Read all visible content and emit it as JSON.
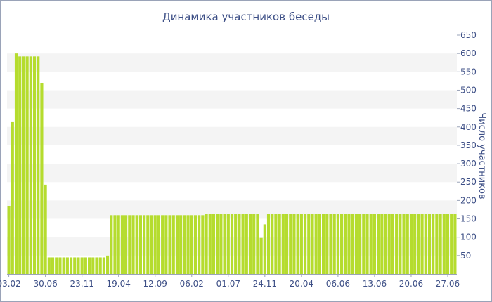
{
  "chart_data": {
    "type": "bar",
    "title": "Динамика участников беседы",
    "ylabel": "Число участников",
    "xlabel": "",
    "ylim": [
      0,
      650
    ],
    "y_ticks": [
      50,
      100,
      150,
      200,
      250,
      300,
      350,
      400,
      450,
      500,
      550,
      600,
      650
    ],
    "y_axis_side": "right",
    "x_tick_labels": [
      "03.02",
      "30.06",
      "23.11",
      "19.04",
      "12.09",
      "06.02",
      "01.07",
      "24.11",
      "20.04",
      "06.06",
      "13.06",
      "20.06",
      "27.06"
    ],
    "x_tick_label_positions": [
      0,
      10,
      20,
      30,
      40,
      50,
      60,
      70,
      80,
      90,
      100,
      110,
      120
    ],
    "grid": "horizontal alternating bands",
    "legend": "none",
    "bar_color": "#b5dc2e",
    "band_color": "#f4f4f4",
    "text_color": "#3d4f86",
    "values": [
      185,
      415,
      600,
      592,
      592,
      592,
      592,
      592,
      592,
      520,
      243,
      45,
      45,
      45,
      45,
      45,
      45,
      45,
      45,
      45,
      45,
      45,
      45,
      45,
      45,
      45,
      45,
      50,
      160,
      160,
      160,
      160,
      160,
      160,
      160,
      160,
      160,
      160,
      160,
      160,
      160,
      160,
      160,
      160,
      160,
      160,
      160,
      160,
      160,
      160,
      160,
      160,
      160,
      160,
      163,
      163,
      163,
      163,
      163,
      163,
      163,
      163,
      163,
      163,
      163,
      163,
      163,
      163,
      163,
      98,
      135,
      163,
      163,
      163,
      163,
      163,
      163,
      163,
      163,
      163,
      163,
      163,
      163,
      163,
      163,
      163,
      163,
      163,
      163,
      163,
      163,
      163,
      163,
      163,
      163,
      163,
      163,
      163,
      163,
      163,
      163,
      163,
      163,
      163,
      163,
      163,
      163,
      163,
      163,
      163,
      163,
      163,
      163,
      163,
      163,
      163,
      163,
      163,
      163,
      163,
      163,
      163,
      163
    ]
  }
}
